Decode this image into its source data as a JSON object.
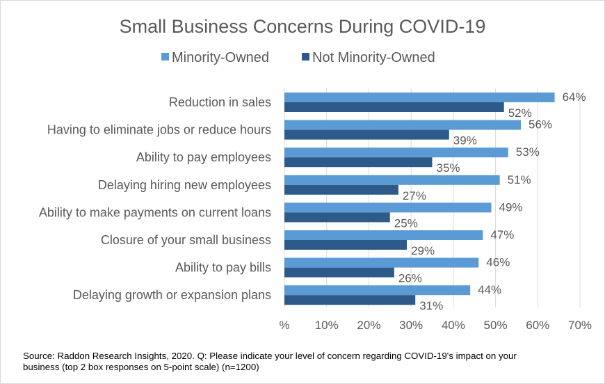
{
  "chart_data": {
    "type": "bar",
    "orientation": "horizontal",
    "title": "Small Business Concerns During COVID-19",
    "categories": [
      "Reduction in sales",
      "Having to eliminate jobs or reduce hours",
      "Ability to pay employees",
      "Delaying hiring new employees",
      "Ability to make payments on current loans",
      "Closure of your small business",
      "Ability to pay bills",
      "Delaying growth or expansion plans"
    ],
    "series": [
      {
        "name": "Minority-Owned",
        "color": "#5B9BD5",
        "values": [
          64,
          56,
          53,
          51,
          49,
          47,
          46,
          44
        ],
        "labels": [
          "64%",
          "56%",
          "53%",
          "51%",
          "49%",
          "47%",
          "46%",
          "44%"
        ]
      },
      {
        "name": "Not Minority-Owned",
        "color": "#2D5A88",
        "values": [
          52,
          39,
          35,
          27,
          25,
          29,
          26,
          31
        ],
        "labels": [
          "52%",
          "39%",
          "35%",
          "27%",
          "25%",
          "29%",
          "26%",
          "31%"
        ]
      }
    ],
    "xlim": [
      0,
      70
    ],
    "xticks": [
      "%",
      "10%",
      "20%",
      "30%",
      "40%",
      "50%",
      "60%",
      "70%"
    ],
    "grid": true,
    "legend": "top"
  },
  "source": "Source: Raddon Research Insights, 2020. Q: Please indicate your level of concern regarding COVID-19's impact on your business (top 2 box responses on 5-point scale) (n=1200)"
}
